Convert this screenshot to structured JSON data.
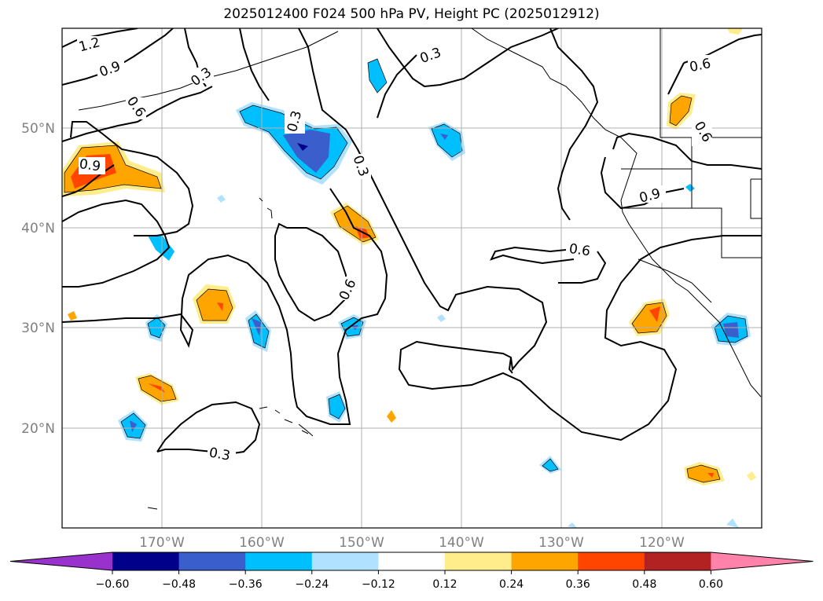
{
  "title": "2025012400 F024 500 hPa PV, Height PC (2025012912)",
  "map": {
    "lon_range": [
      -180,
      -110
    ],
    "lat_range": [
      10,
      60
    ],
    "lat_labels": [
      "50°N",
      "40°N",
      "30°N",
      "20°N"
    ],
    "lat_values": [
      50,
      40,
      30,
      20
    ],
    "lon_labels": [
      "170°W",
      "160°W",
      "150°W",
      "140°W",
      "130°W",
      "120°W"
    ],
    "lon_values": [
      -170,
      -160,
      -150,
      -140,
      -130,
      -120
    ],
    "gridlines": true
  },
  "contour_labels": [
    "1.2",
    "0.9",
    "0.3",
    "0.6",
    "0.3",
    "0.3",
    "0.3",
    "0.6",
    "0.9",
    "0.6",
    "0.6",
    "0.9",
    "0.6",
    "0.3"
  ],
  "colorbar": {
    "ticks": [
      "−0.60",
      "−0.48",
      "−0.36",
      "−0.24",
      "−0.12",
      "0.12",
      "0.24",
      "0.36",
      "0.48",
      "0.60"
    ],
    "colors": [
      "#9932cc",
      "#00008b",
      "#3a5fcd",
      "#00bfff",
      "#b0e2ff",
      "#ffffff",
      "#ffec8b",
      "#ffa500",
      "#ff4500",
      "#b22222",
      "#ff82ab"
    ],
    "extend": "both"
  }
}
